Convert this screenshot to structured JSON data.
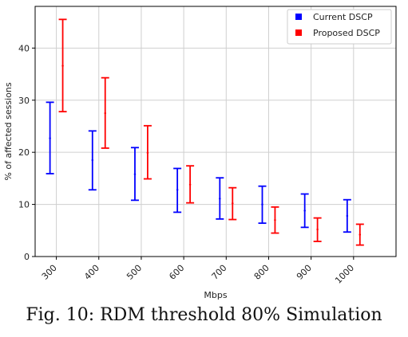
{
  "caption": "Fig. 10: RDM threshold 80% Simulation",
  "chart_data": {
    "type": "errorbar",
    "categories": [
      "300",
      "400",
      "500",
      "600",
      "700",
      "800",
      "900",
      "1000"
    ],
    "xlabel": "Mbps",
    "ylabel": "% of affected sessions",
    "ylim": [
      0,
      48
    ],
    "yticks": [
      0,
      10,
      20,
      30,
      40
    ],
    "grid": true,
    "legend_position": "top-right",
    "series": [
      {
        "name": "Current DSCP",
        "color": "#0000ff",
        "values": [
          22.7,
          18.5,
          15.8,
          12.8,
          11.1,
          10.0,
          8.8,
          7.8
        ],
        "lower": [
          15.9,
          12.8,
          10.8,
          8.5,
          7.2,
          6.4,
          5.6,
          4.7
        ],
        "upper": [
          29.6,
          24.1,
          20.9,
          16.9,
          15.1,
          13.5,
          12.0,
          10.9
        ]
      },
      {
        "name": "Proposed DSCP",
        "color": "#ff0000",
        "values": [
          36.6,
          27.5,
          19.9,
          13.8,
          10.2,
          7.0,
          5.2,
          4.2
        ],
        "lower": [
          27.8,
          20.8,
          14.9,
          10.3,
          7.1,
          4.5,
          2.9,
          2.2
        ],
        "upper": [
          45.5,
          34.3,
          25.1,
          17.4,
          13.2,
          9.5,
          7.4,
          6.2
        ]
      }
    ]
  }
}
